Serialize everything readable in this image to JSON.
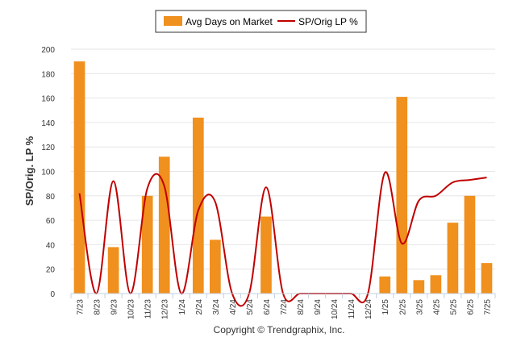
{
  "colors": {
    "bar": "#F0901E",
    "line": "#C00000",
    "grid": "#E6E6E6",
    "axis": "#C0D0E0"
  },
  "copyright": "Copyright © Trendgraphix, Inc.",
  "chart_data": {
    "type": "bar",
    "ylabel": "SP/Orig. LP %",
    "ylim": [
      0,
      200
    ],
    "yticks": [
      0,
      20,
      40,
      60,
      80,
      100,
      120,
      140,
      160,
      180,
      200
    ],
    "grid": true,
    "legend_position": "top-center",
    "categories": [
      "7/23",
      "8/23",
      "9/23",
      "10/23",
      "11/23",
      "12/23",
      "1/24",
      "2/24",
      "3/24",
      "4/24",
      "5/24",
      "6/24",
      "7/24",
      "8/24",
      "9/24",
      "10/24",
      "11/24",
      "12/24",
      "1/25",
      "2/25",
      "3/25",
      "4/25",
      "5/25",
      "6/25",
      "7/25"
    ],
    "series": [
      {
        "name": "Avg Days on Market",
        "type": "bar",
        "values": [
          190,
          0,
          38,
          0,
          80,
          112,
          0,
          144,
          44,
          0,
          0,
          63,
          0,
          0,
          0,
          0,
          0,
          0,
          14,
          161,
          11,
          15,
          58,
          80,
          25
        ]
      },
      {
        "name": "SP/Orig LP %",
        "type": "line",
        "smooth": true,
        "values": [
          82,
          0,
          92,
          0,
          86,
          88,
          0,
          68,
          75,
          0,
          0,
          87,
          0,
          0,
          0,
          0,
          0,
          0,
          99,
          41,
          76,
          80,
          91,
          93,
          95
        ]
      }
    ]
  }
}
